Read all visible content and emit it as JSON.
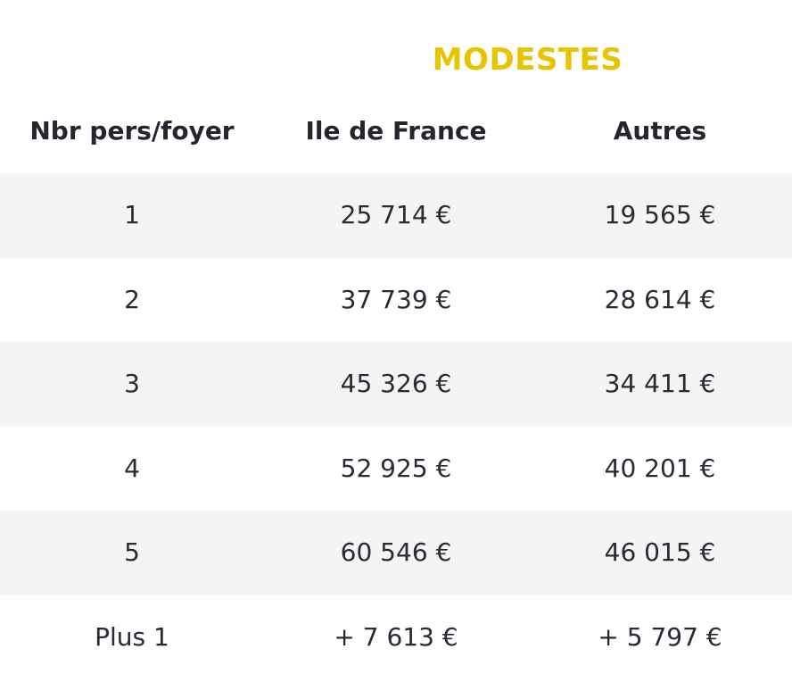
{
  "title": "MODESTES",
  "colors": {
    "accent": "#e8c300",
    "text": "#2a2a35",
    "row_shade": "#f4f4f4"
  },
  "table": {
    "headers": [
      "Nbr pers/foyer",
      "Ile de France",
      "Autres"
    ],
    "rows": [
      [
        "1",
        "25 714 €",
        "19 565 €"
      ],
      [
        "2",
        "37 739 €",
        "28 614 €"
      ],
      [
        "3",
        "45 326 €",
        "34 411 €"
      ],
      [
        "4",
        "52 925 €",
        "40 201 €"
      ],
      [
        "5",
        "60 546 €",
        "46 015 €"
      ],
      [
        "Plus 1",
        "+ 7 613 €",
        "+ 5 797 €"
      ]
    ]
  }
}
